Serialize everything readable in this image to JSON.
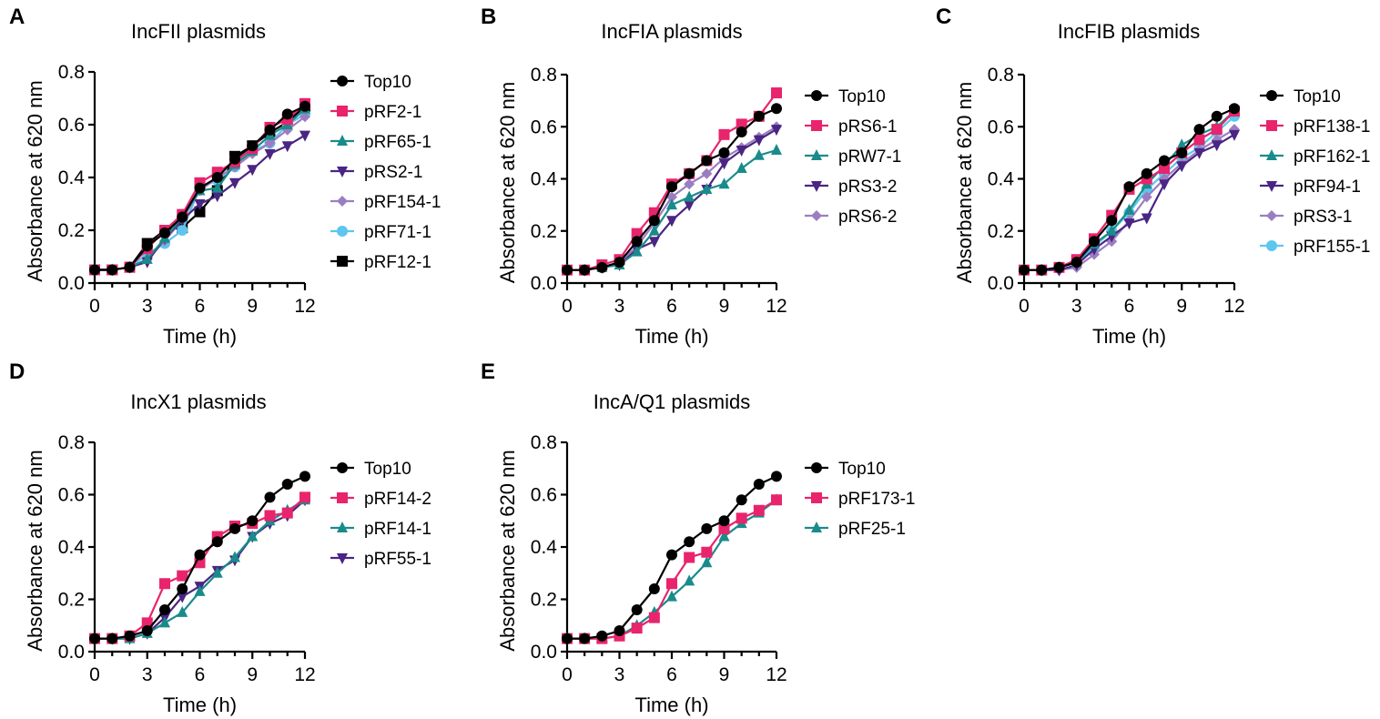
{
  "chart_data": [
    {
      "panel": "A",
      "type": "line",
      "title": "IncFII plasmids",
      "xlabel": "Time (h)",
      "ylabel": "Absorbance at 620 nm",
      "xlim": [
        0,
        12
      ],
      "ylim": [
        0,
        0.8
      ],
      "xticks": [
        "0",
        "3",
        "6",
        "9",
        "12"
      ],
      "yticks": [
        "0.0",
        "0.2",
        "0.4",
        "0.6",
        "0.8"
      ],
      "x": [
        0,
        1,
        2,
        3,
        4,
        5,
        6,
        7,
        8,
        9,
        10,
        11,
        12
      ],
      "series": [
        {
          "name": "Top10",
          "color": "#000000",
          "marker": "circle",
          "values": [
            0.05,
            0.05,
            0.06,
            0.14,
            0.19,
            0.25,
            0.36,
            0.4,
            0.47,
            0.52,
            0.58,
            0.64,
            0.67
          ]
        },
        {
          "name": "pRF2-1",
          "color": "#e8246c",
          "marker": "square",
          "values": [
            0.05,
            0.05,
            0.06,
            0.13,
            0.2,
            0.26,
            0.38,
            0.42,
            0.46,
            0.51,
            0.59,
            0.62,
            0.68
          ]
        },
        {
          "name": "pRF65-1",
          "color": "#1a8b8b",
          "marker": "triangle-up",
          "values": [
            0.05,
            0.05,
            0.06,
            0.09,
            0.17,
            0.25,
            0.35,
            0.36,
            0.45,
            0.5,
            0.56,
            0.6,
            0.66
          ]
        },
        {
          "name": "pRS2-1",
          "color": "#4a2583",
          "marker": "triangle-down",
          "values": [
            0.05,
            0.05,
            0.06,
            0.08,
            0.17,
            0.24,
            0.3,
            0.33,
            0.38,
            0.43,
            0.49,
            0.52,
            0.56
          ]
        },
        {
          "name": "pRF154-1",
          "color": "#9b7ec2",
          "marker": "diamond",
          "values": [
            0.05,
            0.05,
            0.06,
            0.09,
            0.16,
            0.24,
            0.35,
            0.4,
            0.44,
            0.49,
            0.53,
            0.58,
            0.63
          ]
        },
        {
          "name": "pRF71-1",
          "color": "#5dc6ef",
          "marker": "circle",
          "values": [
            0.05,
            0.05,
            0.06,
            0.11,
            0.15,
            0.2,
            0.36,
            0.39,
            0.44,
            0.5,
            0.53,
            0.6,
            0.64
          ]
        },
        {
          "name": "pRF12-1",
          "color": "#000000",
          "marker": "square",
          "values": [
            0.05,
            0.05,
            0.06,
            0.15,
            0.2,
            0.21,
            0.27,
            0.35,
            0.48,
            0.52,
            0.57,
            0.61,
            0.67
          ]
        }
      ]
    },
    {
      "panel": "B",
      "type": "line",
      "title": "IncFIA plasmids",
      "xlabel": "Time (h)",
      "ylabel": "Absorbance at 620 nm",
      "xlim": [
        0,
        12
      ],
      "ylim": [
        0,
        0.8
      ],
      "xticks": [
        "0",
        "3",
        "6",
        "9",
        "12"
      ],
      "yticks": [
        "0.0",
        "0.2",
        "0.4",
        "0.6",
        "0.8"
      ],
      "x": [
        0,
        1,
        2,
        3,
        4,
        5,
        6,
        7,
        8,
        9,
        10,
        11,
        12
      ],
      "series": [
        {
          "name": "Top10",
          "color": "#000000",
          "marker": "circle",
          "values": [
            0.05,
            0.05,
            0.06,
            0.08,
            0.16,
            0.24,
            0.37,
            0.42,
            0.47,
            0.5,
            0.58,
            0.64,
            0.67
          ]
        },
        {
          "name": "pRS6-1",
          "color": "#e8246c",
          "marker": "square",
          "values": [
            0.05,
            0.05,
            0.07,
            0.09,
            0.19,
            0.27,
            0.38,
            0.42,
            0.47,
            0.57,
            0.61,
            0.64,
            0.73
          ]
        },
        {
          "name": "pRW7-1",
          "color": "#1a8b8b",
          "marker": "triangle-up",
          "values": [
            0.05,
            0.05,
            0.06,
            0.07,
            0.12,
            0.2,
            0.3,
            0.33,
            0.36,
            0.38,
            0.44,
            0.49,
            0.51
          ]
        },
        {
          "name": "pRS3-2",
          "color": "#4a2583",
          "marker": "triangle-down",
          "values": [
            0.05,
            0.05,
            0.06,
            0.07,
            0.13,
            0.16,
            0.24,
            0.3,
            0.36,
            0.46,
            0.51,
            0.55,
            0.59
          ]
        },
        {
          "name": "pRS6-2",
          "color": "#9b7ec2",
          "marker": "diamond",
          "values": [
            0.05,
            0.05,
            0.06,
            0.08,
            0.14,
            0.23,
            0.33,
            0.38,
            0.42,
            0.48,
            0.52,
            0.56,
            0.6
          ]
        }
      ]
    },
    {
      "panel": "C",
      "type": "line",
      "title": "IncFIB plasmids",
      "xlabel": "Time (h)",
      "ylabel": "Absorbance at 620 nm",
      "xlim": [
        0,
        12
      ],
      "ylim": [
        0,
        0.8
      ],
      "xticks": [
        "0",
        "3",
        "6",
        "9",
        "12"
      ],
      "yticks": [
        "0.0",
        "0.2",
        "0.4",
        "0.6",
        "0.8"
      ],
      "x": [
        0,
        1,
        2,
        3,
        4,
        5,
        6,
        7,
        8,
        9,
        10,
        11,
        12
      ],
      "series": [
        {
          "name": "Top10",
          "color": "#000000",
          "marker": "circle",
          "values": [
            0.05,
            0.05,
            0.06,
            0.08,
            0.16,
            0.24,
            0.37,
            0.42,
            0.47,
            0.5,
            0.59,
            0.64,
            0.67
          ]
        },
        {
          "name": "pRF138-1",
          "color": "#e8246c",
          "marker": "square",
          "values": [
            0.05,
            0.05,
            0.06,
            0.09,
            0.17,
            0.26,
            0.36,
            0.4,
            0.44,
            0.5,
            0.55,
            0.59,
            0.66
          ]
        },
        {
          "name": "pRF162-1",
          "color": "#1a8b8b",
          "marker": "triangle-up",
          "values": [
            0.05,
            0.05,
            0.06,
            0.08,
            0.15,
            0.2,
            0.28,
            0.38,
            0.45,
            0.53,
            0.57,
            0.6,
            0.66
          ]
        },
        {
          "name": "pRF94-1",
          "color": "#4a2583",
          "marker": "triangle-down",
          "values": [
            0.05,
            0.05,
            0.05,
            0.07,
            0.13,
            0.18,
            0.23,
            0.25,
            0.38,
            0.45,
            0.5,
            0.53,
            0.57
          ]
        },
        {
          "name": "pRS3-1",
          "color": "#9b7ec2",
          "marker": "diamond",
          "values": [
            0.05,
            0.05,
            0.05,
            0.06,
            0.11,
            0.16,
            0.24,
            0.33,
            0.4,
            0.46,
            0.51,
            0.55,
            0.59
          ]
        },
        {
          "name": "pRF155-1",
          "color": "#5dc6ef",
          "marker": "circle",
          "values": [
            0.05,
            0.05,
            0.06,
            0.08,
            0.14,
            0.2,
            0.27,
            0.36,
            0.42,
            0.48,
            0.52,
            0.58,
            0.64
          ]
        }
      ]
    },
    {
      "panel": "D",
      "type": "line",
      "title": "IncX1 plasmids",
      "xlabel": "Time (h)",
      "ylabel": "Absorbance at 620 nm",
      "xlim": [
        0,
        12
      ],
      "ylim": [
        0,
        0.8
      ],
      "xticks": [
        "0",
        "3",
        "6",
        "9",
        "12"
      ],
      "yticks": [
        "0.0",
        "0.2",
        "0.4",
        "0.6",
        "0.8"
      ],
      "x": [
        0,
        1,
        2,
        3,
        4,
        5,
        6,
        7,
        8,
        9,
        10,
        11,
        12
      ],
      "series": [
        {
          "name": "Top10",
          "color": "#000000",
          "marker": "circle",
          "values": [
            0.05,
            0.05,
            0.06,
            0.08,
            0.16,
            0.24,
            0.37,
            0.42,
            0.47,
            0.5,
            0.59,
            0.64,
            0.67
          ]
        },
        {
          "name": "pRF14-2",
          "color": "#e8246c",
          "marker": "square",
          "values": [
            0.05,
            0.05,
            0.06,
            0.11,
            0.26,
            0.29,
            0.34,
            0.44,
            0.48,
            0.49,
            0.52,
            0.53,
            0.59
          ]
        },
        {
          "name": "pRF14-1",
          "color": "#1a8b8b",
          "marker": "triangle-up",
          "values": [
            0.05,
            0.05,
            0.05,
            0.07,
            0.11,
            0.15,
            0.23,
            0.3,
            0.36,
            0.44,
            0.5,
            0.54,
            0.58
          ]
        },
        {
          "name": "pRF55-1",
          "color": "#4a2583",
          "marker": "triangle-down",
          "values": [
            0.05,
            0.05,
            0.05,
            0.07,
            0.13,
            0.21,
            0.25,
            0.31,
            0.35,
            0.44,
            0.49,
            0.52,
            0.58
          ]
        }
      ]
    },
    {
      "panel": "E",
      "type": "line",
      "title": "IncA/Q1 plasmids",
      "xlabel": "Time (h)",
      "ylabel": "Absorbance at 620 nm",
      "xlim": [
        0,
        12
      ],
      "ylim": [
        0,
        0.8
      ],
      "xticks": [
        "0",
        "3",
        "6",
        "9",
        "12"
      ],
      "yticks": [
        "0.0",
        "0.2",
        "0.4",
        "0.6",
        "0.8"
      ],
      "x": [
        0,
        1,
        2,
        3,
        4,
        5,
        6,
        7,
        8,
        9,
        10,
        11,
        12
      ],
      "series": [
        {
          "name": "Top10",
          "color": "#000000",
          "marker": "circle",
          "values": [
            0.05,
            0.05,
            0.06,
            0.08,
            0.16,
            0.24,
            0.37,
            0.42,
            0.47,
            0.5,
            0.58,
            0.64,
            0.67
          ]
        },
        {
          "name": "pRF173-1",
          "color": "#e8246c",
          "marker": "square",
          "values": [
            0.05,
            0.05,
            0.05,
            0.06,
            0.09,
            0.13,
            0.26,
            0.36,
            0.38,
            0.47,
            0.51,
            0.54,
            0.58
          ]
        },
        {
          "name": "pRF25-1",
          "color": "#1a8b8b",
          "marker": "triangle-up",
          "values": [
            0.05,
            0.05,
            0.05,
            0.06,
            0.1,
            0.15,
            0.21,
            0.27,
            0.34,
            0.44,
            0.49,
            0.53,
            0.58
          ]
        }
      ]
    }
  ]
}
